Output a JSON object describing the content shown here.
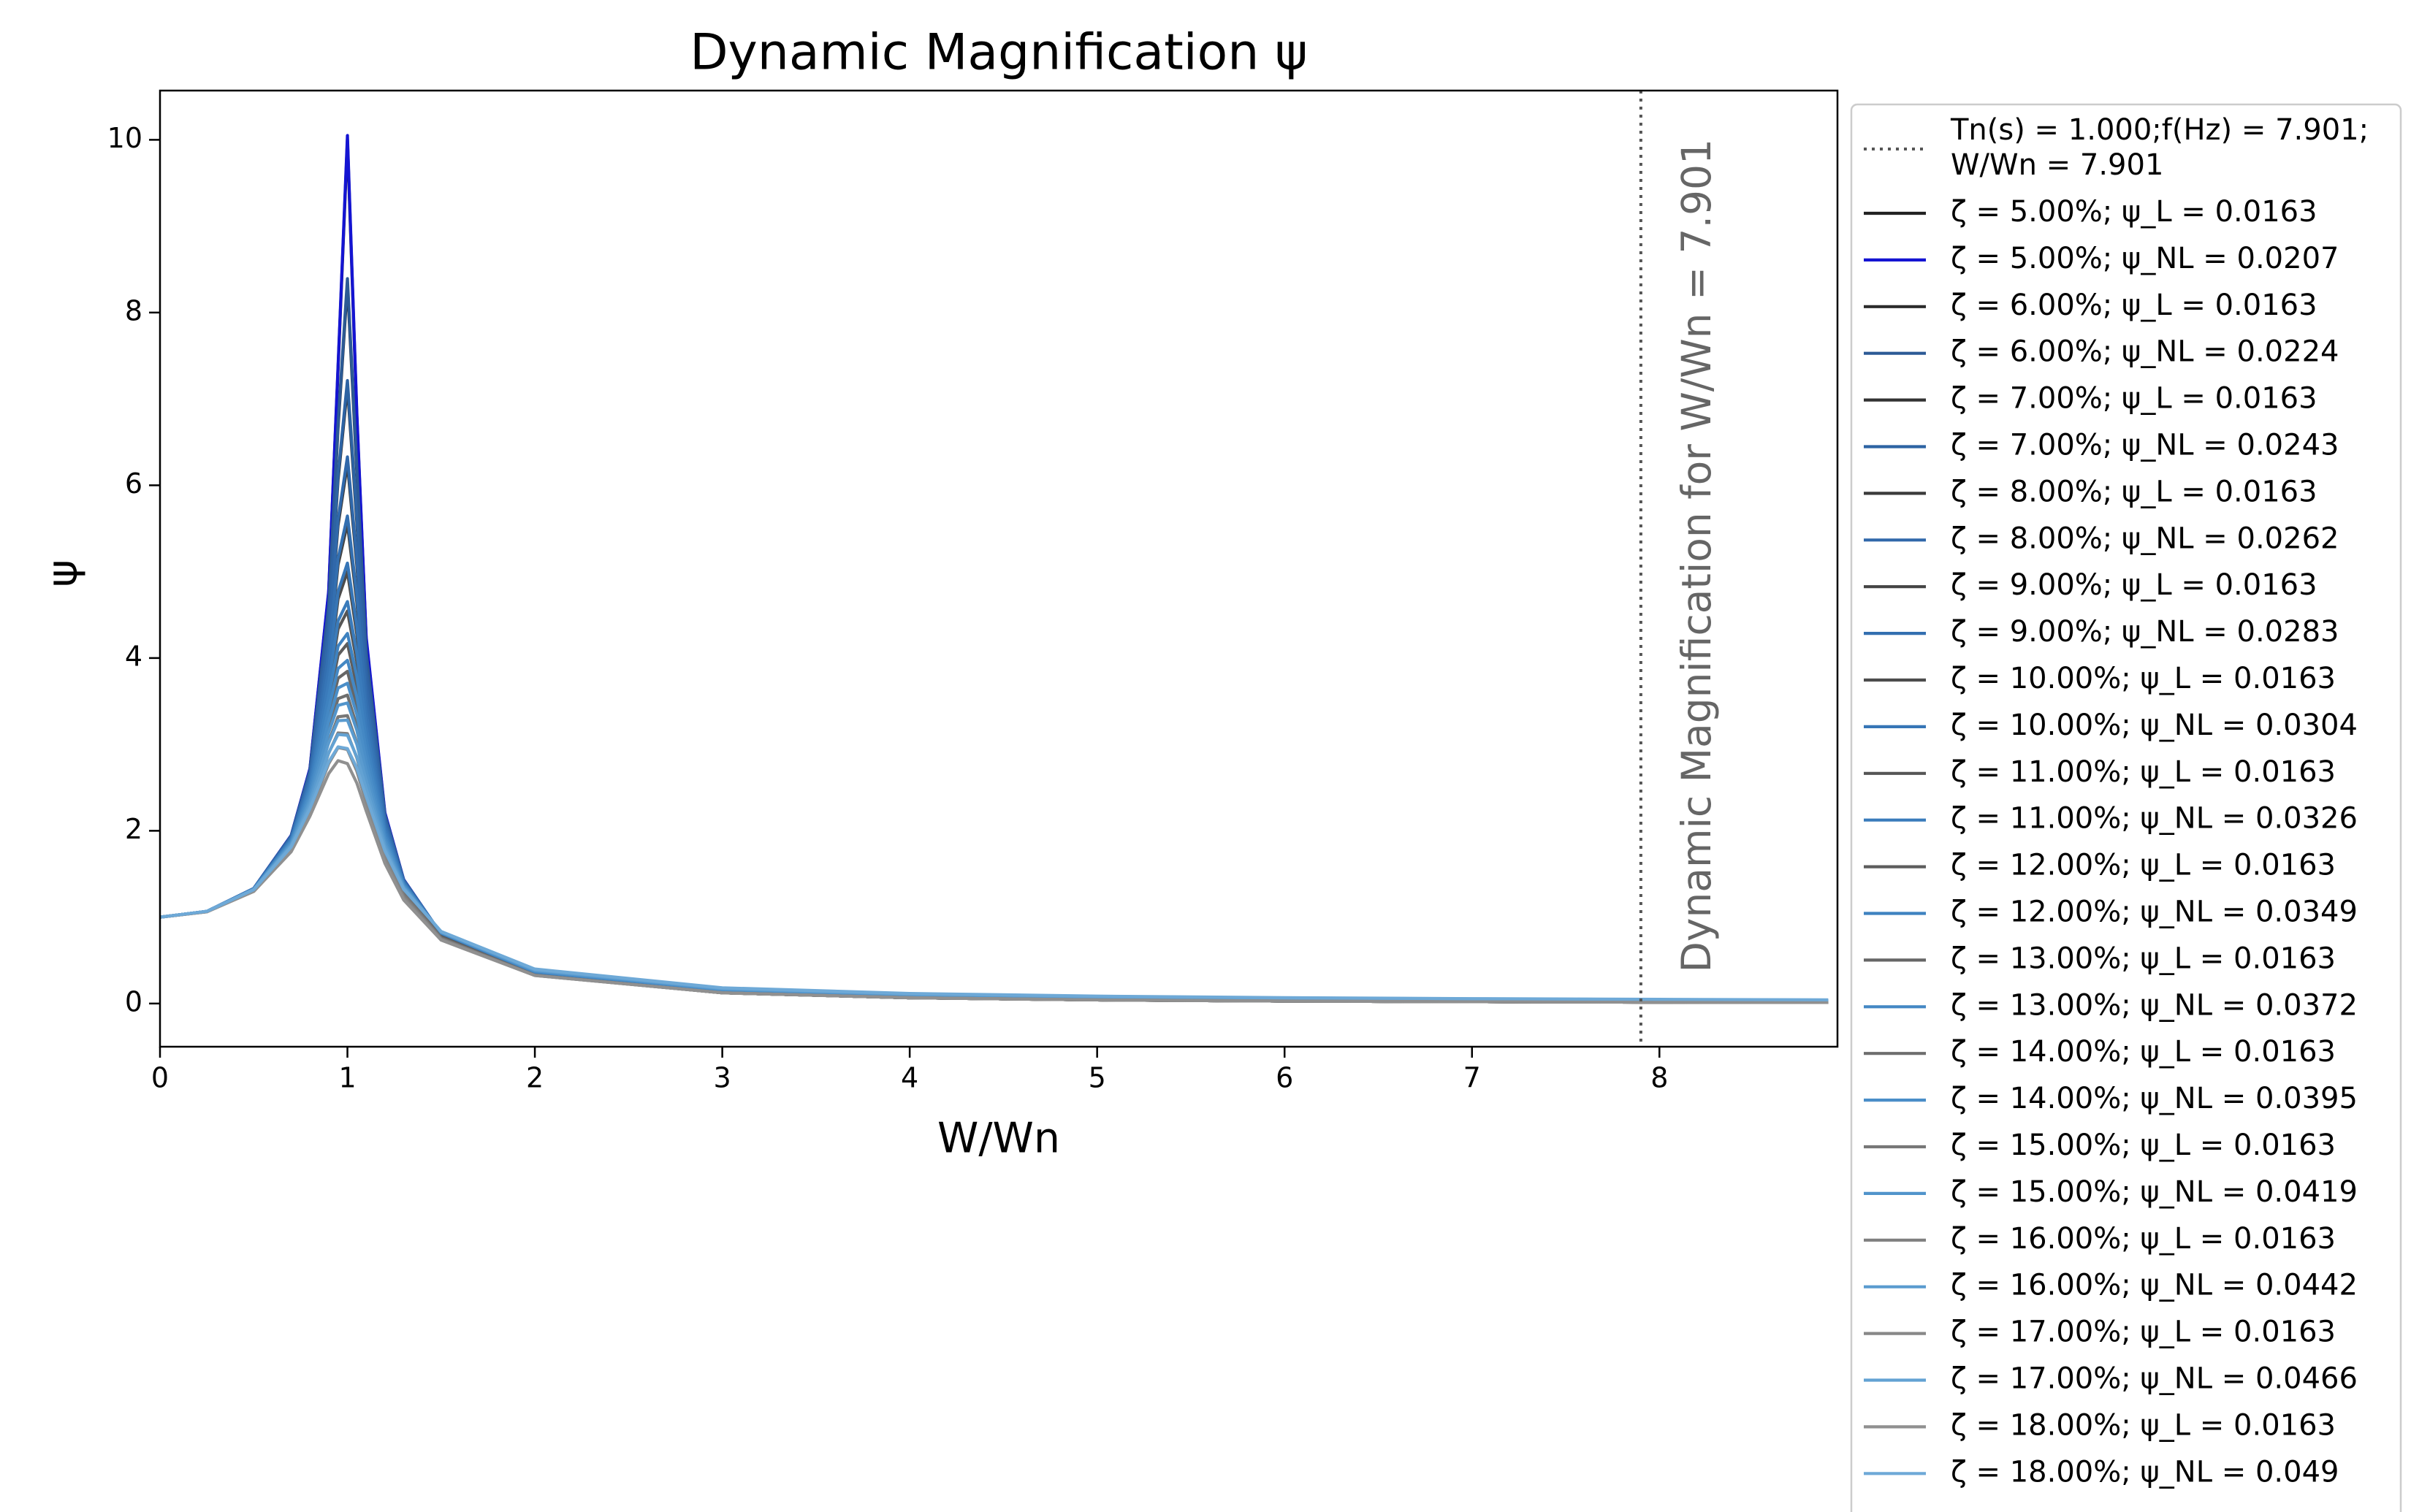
{
  "chart_data": {
    "type": "line",
    "title": "Dynamic Magnification ψ",
    "x_label": "W/Wn",
    "y_label": "ψ",
    "xlim": [
      0,
      8.95
    ],
    "ylim": [
      -0.5,
      10.57
    ],
    "xticks": [
      0,
      1,
      2,
      3,
      4,
      5,
      6,
      7,
      8
    ],
    "yticks": [
      0,
      2,
      4,
      6,
      8,
      10
    ],
    "grid": false,
    "legend": "outside-right",
    "vline": {
      "x": 7.901,
      "color": "#555555",
      "legend": [
        "Tn(s) = 1.000;f(Hz) = 7.901;",
        "W/Wn = 7.901"
      ],
      "annotation": "Dynamic Magnification for W/Wn = 7.901"
    },
    "x": [
      0,
      0.25,
      0.5,
      0.7,
      0.8,
      0.9,
      0.95,
      1,
      1.05,
      1.1,
      1.2,
      1.3,
      1.5,
      2,
      3,
      4,
      5,
      6,
      7,
      8,
      8.9
    ],
    "series": [
      {
        "name": "ζ = 5.00%; ψ_L = 0.0163",
        "color": "#222222",
        "values": [
          1,
          1.066,
          1.33,
          1.943,
          2.712,
          4.757,
          7.346,
          10,
          6.815,
          4.218,
          2.193,
          1.424,
          0.794,
          0.3326,
          0.1249,
          0.0666,
          0.0417,
          0.0286,
          0.0208,
          0.0159,
          0.0128
        ]
      },
      {
        "name": "ζ = 5.00%; ψ_NL = 0.0207",
        "color": "#1414d2",
        "values": [
          1,
          1.067,
          1.332,
          1.947,
          2.721,
          4.776,
          7.379,
          10.05,
          6.852,
          4.243,
          2.209,
          1.436,
          0.803,
          0.3392,
          0.1304,
          0.0717,
          0.0466,
          0.0334,
          0.0254,
          0.0204,
          0.0171
        ]
      },
      {
        "name": "ζ = 6.00%; ψ_L = 0.0163",
        "color": "#2b2b2b",
        "values": [
          1,
          1.066,
          1.329,
          1.935,
          2.684,
          4.576,
          6.667,
          8.333,
          6.157,
          4.032,
          2.16,
          1.414,
          0.792,
          0.3323,
          0.1249,
          0.0666,
          0.0417,
          0.0286,
          0.0208,
          0.0159,
          0.0128
        ]
      },
      {
        "name": "ζ = 6.00%; ψ_NL = 0.0224",
        "color": "#2c5a95",
        "values": [
          1,
          1.067,
          1.332,
          1.941,
          2.696,
          4.603,
          6.71,
          8.393,
          6.206,
          4.067,
          2.182,
          1.431,
          0.805,
          0.3417,
          0.1327,
          0.0739,
          0.0486,
          0.0352,
          0.0272,
          0.022,
          0.0187
        ]
      },
      {
        "name": "ζ = 7.00%; ψ_L = 0.0163",
        "color": "#333333",
        "values": [
          1,
          1.066,
          1.328,
          1.926,
          2.653,
          4.386,
          6.063,
          7.143,
          5.58,
          3.84,
          2.123,
          1.401,
          0.789,
          0.3319,
          0.1248,
          0.0666,
          0.0417,
          0.0286,
          0.0208,
          0.0159,
          0.0128
        ]
      },
      {
        "name": "ζ = 7.00%; ψ_NL = 0.0243",
        "color": "#2d63a3",
        "values": [
          1,
          1.067,
          1.331,
          1.935,
          2.669,
          4.421,
          6.116,
          7.213,
          5.64,
          3.885,
          2.153,
          1.424,
          0.806,
          0.3447,
          0.1354,
          0.0763,
          0.0509,
          0.0374,
          0.0291,
          0.0239,
          0.0205
        ]
      },
      {
        "name": "ζ = 8.00%; ψ_L = 0.0163",
        "color": "#3b3b3b",
        "values": [
          1,
          1.066,
          1.326,
          1.915,
          2.617,
          4.194,
          5.537,
          6.25,
          5.081,
          3.65,
          2.083,
          1.388,
          0.786,
          0.3315,
          0.1248,
          0.0666,
          0.0416,
          0.0286,
          0.0208,
          0.0159,
          0.0128
        ]
      },
      {
        "name": "ζ = 8.00%; ψ_NL = 0.0262",
        "color": "#3068aa",
        "values": [
          1,
          1.067,
          1.33,
          1.927,
          2.638,
          4.237,
          5.601,
          6.329,
          5.152,
          3.706,
          2.121,
          1.418,
          0.808,
          0.3481,
          0.1384,
          0.0791,
          0.0533,
          0.0396,
          0.0312,
          0.0258,
          0.0223
        ]
      },
      {
        "name": "ζ = 9.00%; ψ_L = 0.0163",
        "color": "#444444",
        "values": [
          1,
          1.065,
          1.324,
          1.903,
          2.579,
          4.005,
          5.08,
          5.556,
          4.651,
          3.465,
          2.04,
          1.372,
          0.782,
          0.331,
          0.1247,
          0.0666,
          0.0416,
          0.0286,
          0.0208,
          0.0159,
          0.0128
        ]
      },
      {
        "name": "ζ = 9.00%; ψ_NL = 0.0283",
        "color": "#336fb0",
        "values": [
          1,
          1.067,
          1.329,
          1.919,
          2.606,
          4.057,
          5.154,
          5.645,
          4.733,
          3.532,
          2.087,
          1.409,
          0.81,
          0.3518,
          0.1417,
          0.0821,
          0.056,
          0.0421,
          0.0335,
          0.0279,
          0.0242
        ]
      },
      {
        "name": "ζ = 10.00%; ψ_L = 0.0163",
        "color": "#4c4c4c",
        "values": [
          1,
          1.065,
          1.322,
          1.891,
          2.538,
          3.821,
          4.683,
          5,
          4.279,
          3.288,
          1.995,
          1.356,
          0.778,
          0.3304,
          0.1247,
          0.0666,
          0.0416,
          0.0286,
          0.0208,
          0.0159,
          0.0128
        ]
      },
      {
        "name": "ζ = 10.00%; ψ_NL = 0.0304",
        "color": "#3675b6",
        "values": [
          1,
          1.067,
          1.328,
          1.909,
          2.57,
          3.883,
          4.767,
          5.099,
          4.372,
          3.367,
          2.052,
          1.401,
          0.812,
          0.3558,
          0.1454,
          0.0853,
          0.0588,
          0.0447,
          0.0358,
          0.03,
          0.0261
        ]
      },
      {
        "name": "ζ = 11.00%; ψ_L = 0.0163",
        "color": "#555555",
        "values": [
          1,
          1.065,
          1.319,
          1.877,
          2.495,
          3.644,
          4.336,
          4.545,
          3.957,
          3.121,
          1.949,
          1.339,
          0.774,
          0.3298,
          0.1246,
          0.0666,
          0.0416,
          0.0286,
          0.0208,
          0.0159,
          0.0128
        ]
      },
      {
        "name": "ζ = 11.00%; ψ_NL = 0.0326",
        "color": "#3a7bbb",
        "values": [
          1,
          1.067,
          1.327,
          1.899,
          2.533,
          3.715,
          4.43,
          4.654,
          4.061,
          3.211,
          2.016,
          1.393,
          0.815,
          0.3603,
          0.1493,
          0.0887,
          0.0618,
          0.0474,
          0.0382,
          0.0322,
          0.0281
        ]
      },
      {
        "name": "ζ = 12.00%; ψ_L = 0.0163",
        "color": "#5d5d5d",
        "values": [
          1,
          1.065,
          1.317,
          1.862,
          2.451,
          3.476,
          4.033,
          4.167,
          3.676,
          2.964,
          1.902,
          1.321,
          0.769,
          0.3291,
          0.1245,
          0.0665,
          0.0416,
          0.0286,
          0.0208,
          0.0159,
          0.0128
        ]
      },
      {
        "name": "ζ = 12.00%; ψ_NL = 0.0349",
        "color": "#3e82c0",
        "values": [
          1,
          1.067,
          1.326,
          1.889,
          2.496,
          3.556,
          4.137,
          4.285,
          3.791,
          3.066,
          1.979,
          1.384,
          0.817,
          0.3651,
          0.1534,
          0.0922,
          0.065,
          0.0501,
          0.0407,
          0.0344,
          0.0302
        ]
      },
      {
        "name": "ζ = 13.00%; ψ_L = 0.0163",
        "color": "#666666",
        "values": [
          1,
          1.064,
          1.314,
          1.847,
          2.405,
          3.318,
          3.766,
          3.846,
          3.429,
          2.818,
          1.854,
          1.302,
          0.764,
          0.3284,
          0.1244,
          0.0665,
          0.0416,
          0.0286,
          0.0208,
          0.0159,
          0.0128
        ]
      },
      {
        "name": "ζ = 13.00%; ψ_NL = 0.0372",
        "color": "#4488c4",
        "values": [
          1,
          1.067,
          1.325,
          1.877,
          2.457,
          3.408,
          3.879,
          3.974,
          3.555,
          2.931,
          1.942,
          1.374,
          0.82,
          0.3702,
          0.1578,
          0.0959,
          0.0682,
          0.053,
          0.0432,
          0.0367,
          0.0323
        ]
      },
      {
        "name": "ζ = 14.00%; ψ_L = 0.0163",
        "color": "#6e6e6e",
        "values": [
          1,
          1.064,
          1.311,
          1.83,
          2.358,
          3.169,
          3.53,
          3.571,
          3.212,
          2.682,
          1.806,
          1.282,
          0.758,
          0.3277,
          0.1243,
          0.0665,
          0.0416,
          0.0286,
          0.0208,
          0.0159,
          0.0128
        ]
      },
      {
        "name": "ζ = 14.00%; ψ_NL = 0.0395",
        "color": "#4a8ec8",
        "values": [
          1,
          1.067,
          1.324,
          1.865,
          2.416,
          3.268,
          3.653,
          3.708,
          3.348,
          2.806,
          1.905,
          1.364,
          0.822,
          0.3756,
          0.1623,
          0.0998,
          0.0716,
          0.0559,
          0.0458,
          0.039,
          0.0344
        ]
      },
      {
        "name": "ζ = 15.00%; ψ_L = 0.0163",
        "color": "#777777",
        "values": [
          1,
          1.063,
          1.307,
          1.813,
          2.311,
          3.029,
          3.32,
          3.333,
          3.019,
          2.556,
          1.759,
          1.262,
          0.753,
          0.3269,
          0.1242,
          0.0665,
          0.0416,
          0.0286,
          0.0208,
          0.0159,
          0.0128
        ]
      },
      {
        "name": "ζ = 15.00%; ψ_NL = 0.0419",
        "color": "#5194cb",
        "values": [
          1,
          1.067,
          1.322,
          1.853,
          2.377,
          3.137,
          3.452,
          3.48,
          3.165,
          2.691,
          1.869,
          1.355,
          0.826,
          0.3812,
          0.1671,
          0.1039,
          0.075,
          0.0589,
          0.0484,
          0.0413,
          0.0365
        ]
      },
      {
        "name": "ζ = 16.00%; ψ_L = 0.0163",
        "color": "#7f7f7f",
        "values": [
          1,
          1.063,
          1.304,
          1.795,
          2.264,
          2.899,
          3.133,
          3.125,
          2.847,
          2.44,
          1.712,
          1.241,
          0.747,
          0.326,
          0.1241,
          0.0664,
          0.0416,
          0.0286,
          0.0208,
          0.0159,
          0.0128
        ]
      },
      {
        "name": "ζ = 16.00%; ψ_NL = 0.0442",
        "color": "#5a9bcf",
        "values": [
          1,
          1.067,
          1.321,
          1.84,
          2.337,
          3.017,
          3.275,
          3.281,
          3.003,
          2.587,
          1.834,
          1.344,
          0.829,
          0.3871,
          0.172,
          0.1079,
          0.0785,
          0.0619,
          0.051,
          0.0437,
          0.0386
        ]
      },
      {
        "name": "ζ = 17.00%; ψ_L = 0.0163",
        "color": "#888888",
        "values": [
          1,
          1.062,
          1.3,
          1.777,
          2.216,
          2.776,
          2.964,
          2.941,
          2.692,
          2.331,
          1.666,
          1.22,
          0.741,
          0.3251,
          0.124,
          0.0664,
          0.0416,
          0.0286,
          0.0208,
          0.0159,
          0.0128
        ]
      },
      {
        "name": "ζ = 17.00%; ψ_NL = 0.0466",
        "color": "#63a2d3",
        "values": [
          1,
          1.067,
          1.319,
          1.827,
          2.296,
          2.903,
          3.115,
          3.106,
          2.858,
          2.489,
          1.799,
          1.334,
          0.832,
          0.3931,
          0.1771,
          0.1121,
          0.082,
          0.065,
          0.0537,
          0.0461,
          0.0408
        ]
      },
      {
        "name": "ζ = 18.00%; ψ_L = 0.0163",
        "color": "#909090",
        "values": [
          1,
          1.062,
          1.297,
          1.758,
          2.169,
          2.662,
          2.812,
          2.778,
          2.553,
          2.231,
          1.622,
          1.199,
          0.734,
          0.3241,
          0.1239,
          0.0664,
          0.0416,
          0.0286,
          0.0208,
          0.0159,
          0.0128
        ]
      },
      {
        "name": "ζ = 18.00%; ψ_NL = 0.049",
        "color": "#6ea9d7",
        "values": [
          1,
          1.067,
          1.317,
          1.813,
          2.257,
          2.798,
          2.972,
          2.952,
          2.729,
          2.399,
          1.767,
          1.324,
          0.834,
          0.3994,
          0.1824,
          0.1164,
          0.0857,
          0.0681,
          0.0564,
          0.0485,
          0.043
        ]
      }
    ]
  }
}
